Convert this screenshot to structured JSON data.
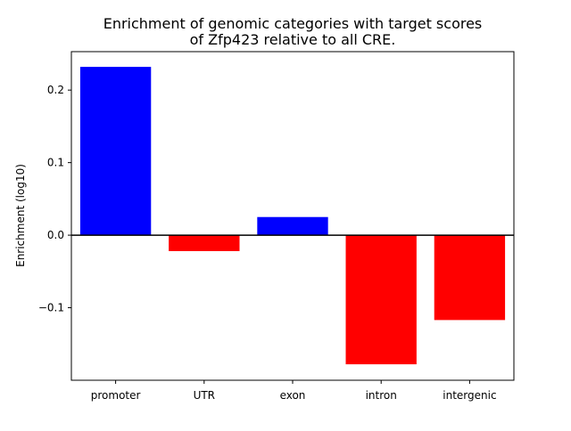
{
  "chart_data": {
    "type": "bar",
    "title": "Enrichment of genomic categories with target scores\nof Zfp423 relative to all CRE.",
    "title_lines": [
      "Enrichment of genomic categories with target scores",
      "of Zfp423 relative to all CRE."
    ],
    "xlabel": "",
    "ylabel": "Enrichment (log10)",
    "categories": [
      "promoter",
      "UTR",
      "exon",
      "intron",
      "intergenic"
    ],
    "values": [
      0.232,
      -0.022,
      0.025,
      -0.178,
      -0.117
    ],
    "ylim": [
      -0.2,
      0.253
    ],
    "yticks": [
      -0.1,
      0.0,
      0.1,
      0.2
    ],
    "ytick_labels": [
      "−0.1",
      "0.0",
      "0.1",
      "0.2"
    ],
    "grid": false,
    "zero_line": true,
    "colors": {
      "positive": "#0000ff",
      "negative": "#ff0000",
      "axis": "#000000"
    }
  }
}
